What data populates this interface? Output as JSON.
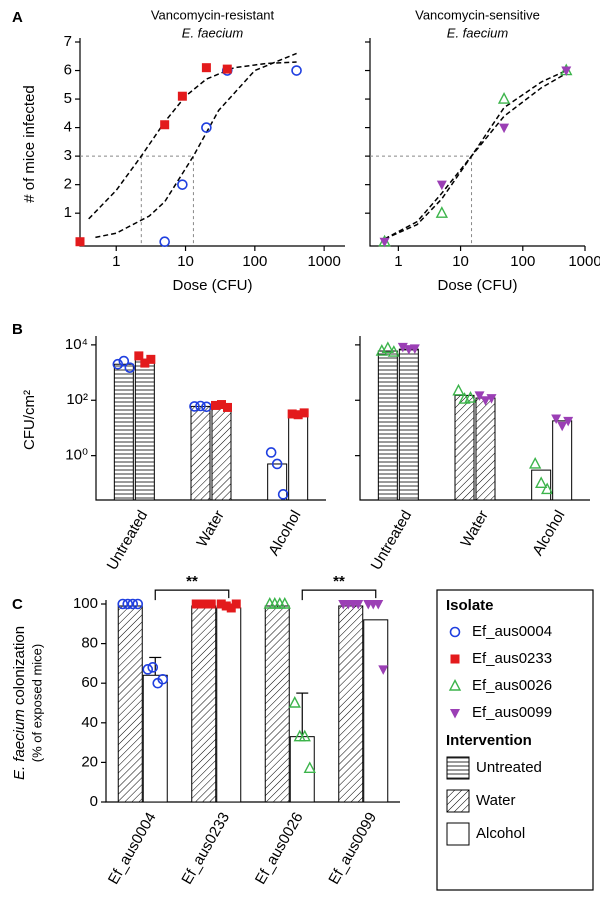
{
  "panel_labels": [
    "A",
    "B",
    "C"
  ],
  "legend": {
    "isolate_title": "Isolate",
    "isolates": [
      {
        "name": "Ef_aus0004",
        "color": "#1f3fe0",
        "marker": "circle-open"
      },
      {
        "name": "Ef_aus0233",
        "color": "#e31a1c",
        "marker": "square"
      },
      {
        "name": "Ef_aus0026",
        "color": "#3cb44b",
        "marker": "triangle-open"
      },
      {
        "name": "Ef_aus0099",
        "color": "#9b3fb5",
        "marker": "triangle-down"
      }
    ],
    "intervention_title": "Intervention",
    "interventions": [
      {
        "name": "Untreated",
        "pattern": "hlines"
      },
      {
        "name": "Water",
        "pattern": "diag"
      },
      {
        "name": "Alcohol",
        "pattern": "none"
      }
    ]
  },
  "chart_data": [
    {
      "type": "scatter",
      "title": "Vancomycin-resistant",
      "subtitle": "E. faecium",
      "xlabel": "Dose (CFU)",
      "ylabel": "# of mice infected",
      "xlog": true,
      "xlim": [
        0.3,
        2000
      ],
      "xticks": [
        1,
        10,
        100,
        1000
      ],
      "ylim": [
        -0.15,
        7
      ],
      "yticks": [
        1,
        2,
        3,
        4,
        5,
        6,
        7
      ],
      "series": [
        {
          "color": "#1f3fe0",
          "marker": "circle-open",
          "x": [
            5,
            9,
            20,
            40,
            400
          ],
          "values": [
            0,
            2,
            4,
            6,
            6
          ]
        },
        {
          "color": "#e31a1c",
          "marker": "square",
          "x": [
            0.3,
            5,
            9,
            20,
            40
          ],
          "values": [
            0,
            4.1,
            5.1,
            6.1,
            6.05
          ]
        }
      ],
      "curves": [
        {
          "x": [
            0.4,
            1,
            2.3,
            5,
            10,
            20,
            50,
            150,
            400
          ],
          "values": [
            0.8,
            1.8,
            3,
            4.2,
            5.1,
            5.7,
            6.1,
            6.25,
            6.3
          ]
        },
        {
          "x": [
            0.5,
            1,
            3,
            5,
            13,
            30,
            100,
            400
          ],
          "values": [
            0.15,
            0.3,
            0.9,
            1.4,
            3,
            4.6,
            6,
            6.6
          ]
        }
      ],
      "ref_y": 3,
      "ref_x": [
        2.3,
        13
      ]
    },
    {
      "type": "scatter",
      "title": "Vancomycin-sensitive",
      "subtitle": "E. faecium",
      "xlabel": "Dose (CFU)",
      "show_ytick_labels": false,
      "xlog": true,
      "xlim": [
        0.35,
        1000
      ],
      "xticks": [
        1,
        10,
        100,
        1000
      ],
      "ylim": [
        -0.15,
        7
      ],
      "yticks": [
        1,
        2,
        3,
        4,
        5,
        6,
        7
      ],
      "series": [
        {
          "color": "#3cb44b",
          "marker": "triangle-open",
          "x": [
            0.6,
            5,
            50,
            500
          ],
          "values": [
            0,
            1,
            5,
            6
          ]
        },
        {
          "color": "#9b3fb5",
          "marker": "triangle-down",
          "x": [
            0.6,
            5,
            50,
            500
          ],
          "values": [
            0,
            2,
            4,
            6
          ]
        }
      ],
      "curves": [
        {
          "x": [
            0.6,
            2,
            5,
            15,
            50,
            200,
            500
          ],
          "values": [
            0.1,
            0.6,
            1.5,
            3,
            4.7,
            5.6,
            6
          ]
        },
        {
          "x": [
            0.6,
            2,
            5,
            15,
            50,
            200,
            500
          ],
          "values": [
            0.1,
            0.7,
            1.7,
            3,
            4.4,
            5.4,
            5.9
          ]
        }
      ],
      "ref_y": 3,
      "ref_x": [
        15
      ]
    },
    {
      "type": "bar",
      "ylabel": "CFU/cm²",
      "ylog": true,
      "ylim": [
        0.025,
        15000
      ],
      "yticks": [
        {
          "value": 1,
          "label": "10⁰"
        },
        {
          "value": 100,
          "label": "10²"
        },
        {
          "value": 10000,
          "label": "10⁴"
        }
      ],
      "categories": [
        "Untreated",
        "Water",
        "Alcohol"
      ],
      "patterns": [
        "hlines",
        "diag",
        "none"
      ],
      "series": [
        {
          "color": "#1f3fe0",
          "marker": "circle-open",
          "values": [
            2000,
            60,
            0.5
          ],
          "points": [
            [
              2000,
              2600,
              1500
            ],
            [
              60,
              62,
              58
            ],
            [
              1.3,
              0.5,
              0.04
            ]
          ]
        },
        {
          "color": "#e31a1c",
          "marker": "square",
          "values": [
            3000,
            60,
            30
          ],
          "points": [
            [
              4000,
              2200,
              3000
            ],
            [
              65,
              70,
              55
            ],
            [
              32,
              30,
              35
            ]
          ]
        }
      ]
    },
    {
      "type": "bar",
      "show_ytick_labels": false,
      "ylog": true,
      "ylim": [
        0.025,
        15000
      ],
      "yticks": [
        {
          "value": 1,
          "label": "10⁰"
        },
        {
          "value": 100,
          "label": "10²"
        },
        {
          "value": 10000,
          "label": "10⁴"
        }
      ],
      "categories": [
        "Untreated",
        "Water",
        "Alcohol"
      ],
      "patterns": [
        "hlines",
        "diag",
        "none"
      ],
      "series": [
        {
          "color": "#3cb44b",
          "marker": "triangle-open",
          "values": [
            6000,
            150,
            0.3
          ],
          "points": [
            [
              6000,
              7500,
              5500
            ],
            [
              220,
              110,
              120
            ],
            [
              0.5,
              0.1,
              0.06
            ]
          ]
        },
        {
          "color": "#9b3fb5",
          "marker": "triangle-down",
          "values": [
            7000,
            120,
            18
          ],
          "points": [
            [
              8500,
              7000,
              7500
            ],
            [
              150,
              100,
              120
            ],
            [
              22,
              12,
              18
            ]
          ]
        }
      ]
    },
    {
      "type": "bar",
      "ylabel_italic": "E. faecium",
      "ylabel": "colonization",
      "ylabel_sub": "(% of exposed mice)",
      "ylim": [
        0,
        100
      ],
      "yticks": [
        0,
        20,
        40,
        60,
        80,
        100
      ],
      "categories": [
        "Ef_aus0004",
        "Ef_aus0233",
        "Ef_aus0026",
        "Ef_aus0099"
      ],
      "category_colors": [
        "#1f3fe0",
        "#e31a1c",
        "#3cb44b",
        "#9b3fb5"
      ],
      "category_markers": [
        "circle-open",
        "square",
        "triangle-open",
        "triangle-down"
      ],
      "series": [
        {
          "pattern": "diag",
          "values": [
            99,
            99,
            99,
            99
          ],
          "points": [
            [
              100,
              100,
              100,
              100
            ],
            [
              100,
              100,
              100,
              100
            ],
            [
              100,
              100,
              100,
              100
            ],
            [
              100,
              100,
              100,
              100
            ]
          ]
        },
        {
          "pattern": "none",
          "values": [
            64,
            98,
            33,
            92
          ],
          "errors": [
            9,
            null,
            22,
            null
          ],
          "points": [
            [
              67,
              68,
              60,
              62
            ],
            [
              100,
              99,
              98,
              100
            ],
            [
              50,
              33,
              33,
              17
            ],
            [
              100,
              100,
              100,
              67
            ]
          ]
        }
      ],
      "brackets": [
        {
          "label": "**",
          "y": 107
        },
        {
          "label": "**",
          "y": 107
        }
      ]
    }
  ]
}
